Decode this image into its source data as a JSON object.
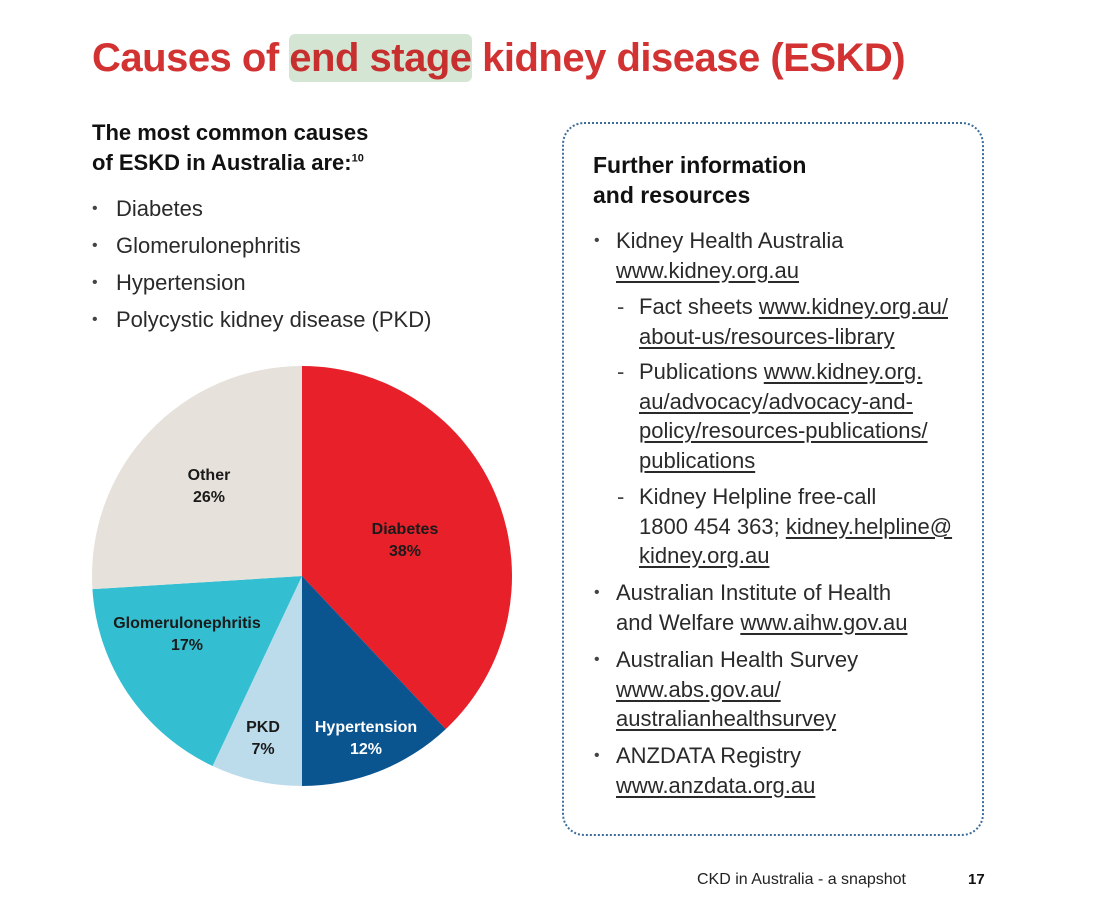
{
  "title": {
    "before": "Causes of ",
    "highlight": "end stage",
    "after": " kidney disease (ESKD)"
  },
  "left": {
    "heading_line1": "The most common causes",
    "heading_line2": "of ESKD in Australia are:",
    "heading_sup": "10",
    "causes": [
      "Diabetes",
      "Glomerulonephritis",
      "Hypertension",
      "Polycystic kidney disease (PKD)"
    ]
  },
  "chart_data": {
    "type": "pie",
    "slices": [
      {
        "label": "Diabetes",
        "value": 38,
        "pct_label": "38%",
        "color": "#e8202a",
        "text_color": "#1a1a1a"
      },
      {
        "label": "Hypertension",
        "value": 12,
        "pct_label": "12%",
        "color": "#0a5590",
        "text_color": "#ffffff"
      },
      {
        "label": "PKD",
        "value": 7,
        "pct_label": "7%",
        "color": "#bcdcec",
        "text_color": "#1a1a1a"
      },
      {
        "label": "Glomerulonephritis",
        "value": 17,
        "pct_label": "17%",
        "color": "#33bfd1",
        "text_color": "#1a1a1a"
      },
      {
        "label": "Other",
        "value": 26,
        "pct_label": "26%",
        "color": "#e6e1db",
        "text_color": "#1a1a1a"
      }
    ],
    "start_angle_deg": 0,
    "direction": "clockwise"
  },
  "resources": {
    "heading_line1": "Further information",
    "heading_line2": "and resources",
    "kha_name": "Kidney Health Australia",
    "kha_url": "www.kidney.org.au",
    "fact_label": "Fact sheets",
    "fact_url_1": "www.kidney.org.au/",
    "fact_url_2": "about-us/resources-library",
    "pub_label": "Publications",
    "pub_url_1": "www.kidney.org.",
    "pub_url_2": "au/advocacy/advocacy-and-",
    "pub_url_3": "policy/resources-publications/",
    "pub_url_4": "publications",
    "help_line1": "Kidney Helpline free-call",
    "help_phone": "1800 454 363;",
    "help_email_1": "kidney.helpline@",
    "help_email_2": "kidney.org.au",
    "aihw_line1": "Australian Institute of Health",
    "aihw_line2": "and Welfare",
    "aihw_url": "www.aihw.gov.au",
    "ahs_name": "Australian Health Survey",
    "ahs_url_1": "www.abs.gov.au/",
    "ahs_url_2": "australianhealthsurvey",
    "anz_name": "ANZDATA Registry",
    "anz_url": "www.anzdata.org.au"
  },
  "footer": {
    "text": "CKD in Australia - a snapshot",
    "page": "17"
  }
}
